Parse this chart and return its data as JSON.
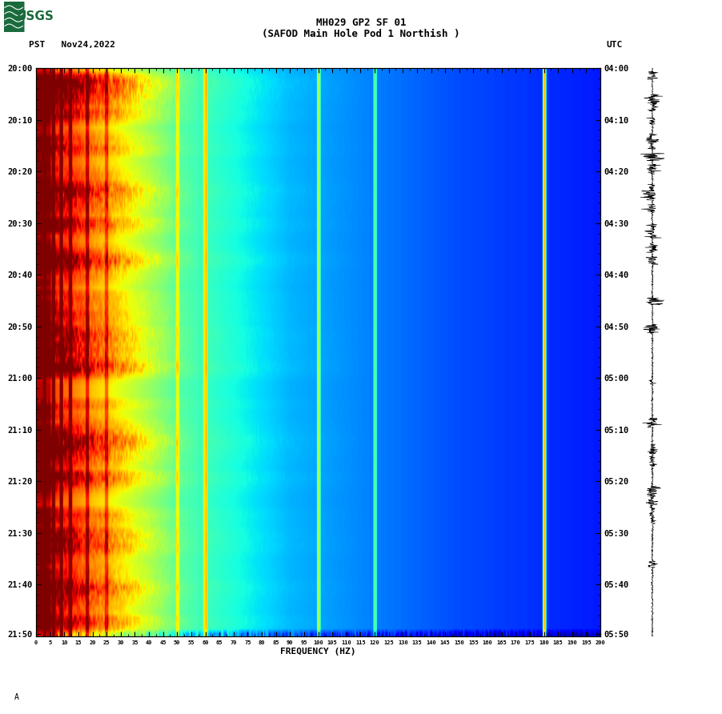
{
  "title_line1": "MH029 GP2 SF 01",
  "title_line2": "(SAFOD Main Hole Pod 1 Northish )",
  "left_label": "PST   Nov24,2022",
  "right_label": "UTC",
  "xlabel": "FREQUENCY (HZ)",
  "time_ticks_left": [
    "20:00",
    "20:10",
    "20:20",
    "20:30",
    "20:40",
    "20:50",
    "21:00",
    "21:10",
    "21:20",
    "21:30",
    "21:40",
    "21:50"
  ],
  "time_ticks_right": [
    "04:00",
    "04:10",
    "04:20",
    "04:30",
    "04:40",
    "04:50",
    "05:00",
    "05:10",
    "05:20",
    "05:30",
    "05:40",
    "05:50"
  ],
  "freq_ticks": [
    0,
    5,
    10,
    15,
    20,
    25,
    30,
    35,
    40,
    45,
    50,
    55,
    60,
    65,
    70,
    75,
    80,
    85,
    90,
    95,
    100,
    105,
    110,
    115,
    120,
    125,
    130,
    135,
    140,
    145,
    150,
    155,
    160,
    165,
    170,
    175,
    180,
    185,
    190,
    195,
    200
  ],
  "bg_color": "#ffffff",
  "num_time_bins": 110,
  "num_freq_bins": 500,
  "seed": 42,
  "freq_min": 0,
  "freq_max": 200
}
